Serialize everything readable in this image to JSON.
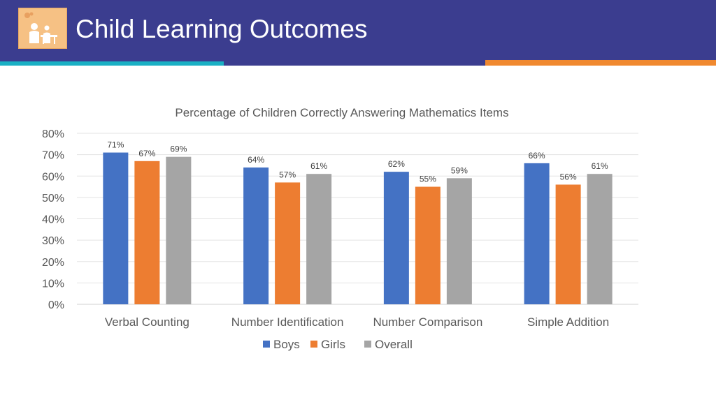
{
  "header": {
    "title": "Child Learning Outcomes",
    "logo_icon": "child-study-icon",
    "colors": {
      "bar": "#3b3d8f",
      "accent_teal": "#1ab0c4",
      "accent_orange": "#f0892f"
    }
  },
  "chart_data": {
    "type": "bar",
    "title": "Percentage of Children Correctly Answering Mathematics Items",
    "categories": [
      "Verbal Counting",
      "Number Identification",
      "Number Comparison",
      "Simple Addition"
    ],
    "series": [
      {
        "name": "Boys",
        "values": [
          71,
          64,
          62,
          66
        ],
        "labels": [
          "71%",
          "64%",
          "62%",
          "66%"
        ],
        "color": "#4472c4"
      },
      {
        "name": "Girls",
        "values": [
          67,
          57,
          55,
          56
        ],
        "labels": [
          "67%",
          "57%",
          "55%",
          "56%"
        ],
        "color": "#ed7d31"
      },
      {
        "name": "Overall",
        "values": [
          69,
          61,
          59,
          61
        ],
        "labels": [
          "69%",
          "61%",
          "59%",
          "61%"
        ],
        "color": "#a5a5a5"
      }
    ],
    "yticks": [
      "0%",
      "10%",
      "20%",
      "30%",
      "40%",
      "50%",
      "60%",
      "70%",
      "80%"
    ],
    "ylim": [
      0,
      80
    ],
    "xlabel": "",
    "ylabel": "",
    "grid": true,
    "legend": "bottom"
  }
}
